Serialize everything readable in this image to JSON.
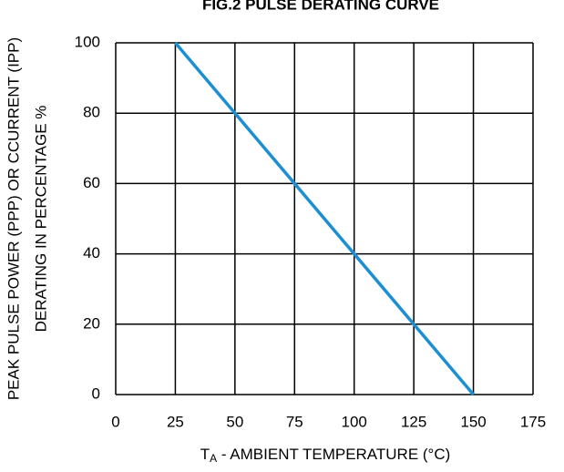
{
  "chart_data": {
    "type": "line",
    "title": "FIG.2 PULSE DERATING CURVE",
    "ylabel": [
      "PEAK PULSE POWER (PPP) OR CCURRENT (IPP)",
      "DERATING IN PERCENTAGE %"
    ],
    "xlabel": {
      "main": "T",
      "sub": "A",
      "rest": " - AMBIENT TEMPERATURE (°C)"
    },
    "x": [
      25,
      150
    ],
    "series": [
      {
        "name": "Derating",
        "color": "#1b8fd2",
        "values": [
          100,
          0
        ]
      }
    ],
    "xlim": [
      0,
      175
    ],
    "xticks": [
      0,
      25,
      50,
      75,
      100,
      125,
      150,
      175
    ],
    "ylim": [
      0,
      100
    ],
    "yticks": [
      0,
      20,
      40,
      60,
      80,
      100
    ],
    "grid": true
  }
}
